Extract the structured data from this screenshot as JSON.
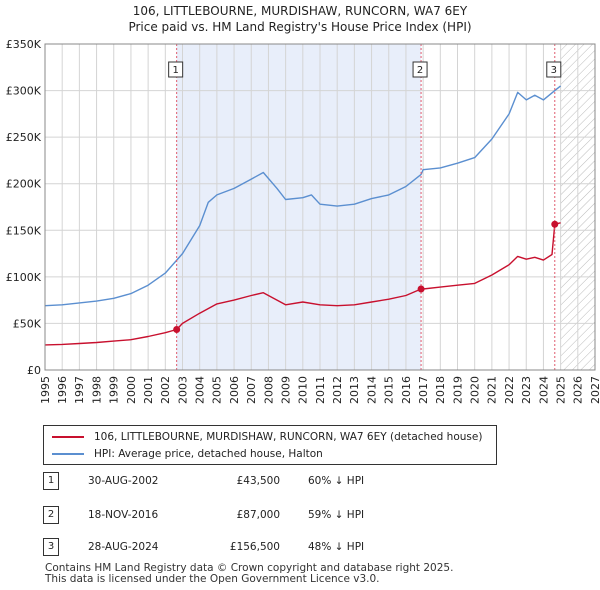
{
  "title_line1": "106, LITTLEBOURNE, MURDISHAW, RUNCORN, WA7 6EY",
  "title_line2": "Price paid vs. HM Land Registry's House Price Index (HPI)",
  "legend": {
    "property": "106, LITTLEBOURNE, MURDISHAW, RUNCORN, WA7 6EY (detached house)",
    "hpi": "HPI: Average price, detached house, Halton"
  },
  "sales": [
    {
      "num": "1",
      "date": "30-AUG-2002",
      "price": "£43,500",
      "hpi_diff": "60% ↓ HPI"
    },
    {
      "num": "2",
      "date": "18-NOV-2016",
      "price": "£87,000",
      "hpi_diff": "59% ↓ HPI"
    },
    {
      "num": "3",
      "date": "28-AUG-2024",
      "price": "£156,500",
      "hpi_diff": "48% ↓ HPI"
    }
  ],
  "footer": {
    "line1": "Contains HM Land Registry data © Crown copyright and database right 2025.",
    "line2": "This data is licensed under the Open Government Licence v3.0."
  },
  "chart_data": {
    "type": "line",
    "title": "Price paid vs. HM Land Registry's House Price Index (HPI)",
    "xlabel": "",
    "ylabel": "",
    "xlim": [
      1995,
      2027
    ],
    "ylim": [
      0,
      350000
    ],
    "x_ticks": [
      "1995",
      "1996",
      "1997",
      "1998",
      "1999",
      "2000",
      "2001",
      "2002",
      "2003",
      "2004",
      "2005",
      "2006",
      "2007",
      "2008",
      "2009",
      "2010",
      "2011",
      "2012",
      "2013",
      "2014",
      "2015",
      "2016",
      "2017",
      "2018",
      "2019",
      "2020",
      "2021",
      "2022",
      "2023",
      "2024",
      "2025",
      "2026",
      "2027"
    ],
    "y_ticks": [
      {
        "value": 0,
        "label": "£0"
      },
      {
        "value": 50000,
        "label": "£50K"
      },
      {
        "value": 100000,
        "label": "£100K"
      },
      {
        "value": 150000,
        "label": "£150K"
      },
      {
        "value": 200000,
        "label": "£200K"
      },
      {
        "value": 250000,
        "label": "£250K"
      },
      {
        "value": 300000,
        "label": "£300K"
      },
      {
        "value": 350000,
        "label": "£350K"
      }
    ],
    "highlight_band": [
      2002.66,
      2016.88
    ],
    "future_hatch_from": 2025.0,
    "series": [
      {
        "name": "HPI: Average price, detached house, Halton",
        "color": "#5b8fd0",
        "points": [
          [
            1995,
            69000
          ],
          [
            1996,
            70000
          ],
          [
            1997,
            72000
          ],
          [
            1998,
            74000
          ],
          [
            1999,
            77000
          ],
          [
            2000,
            82000
          ],
          [
            2001,
            91000
          ],
          [
            2002,
            104000
          ],
          [
            2003,
            125000
          ],
          [
            2004,
            155000
          ],
          [
            2004.5,
            180000
          ],
          [
            2005,
            188000
          ],
          [
            2006,
            195000
          ],
          [
            2007,
            205000
          ],
          [
            2007.7,
            212000
          ],
          [
            2008.5,
            195000
          ],
          [
            2009,
            183000
          ],
          [
            2010,
            185000
          ],
          [
            2010.5,
            188000
          ],
          [
            2011,
            178000
          ],
          [
            2012,
            176000
          ],
          [
            2013,
            178000
          ],
          [
            2014,
            184000
          ],
          [
            2015,
            188000
          ],
          [
            2016,
            197000
          ],
          [
            2016.88,
            210000
          ],
          [
            2017,
            215000
          ],
          [
            2018,
            217000
          ],
          [
            2019,
            222000
          ],
          [
            2020,
            228000
          ],
          [
            2021,
            248000
          ],
          [
            2022,
            275000
          ],
          [
            2022.5,
            298000
          ],
          [
            2023,
            290000
          ],
          [
            2023.5,
            295000
          ],
          [
            2024,
            290000
          ],
          [
            2024.66,
            300000
          ],
          [
            2025,
            305000
          ]
        ]
      },
      {
        "name": "106, LITTLEBOURNE, MURDISHAW, RUNCORN, WA7 6EY (detached house)",
        "color": "#c8102e",
        "points": [
          [
            1995,
            27000
          ],
          [
            1996,
            27500
          ],
          [
            1997,
            28500
          ],
          [
            1998,
            29500
          ],
          [
            1999,
            31000
          ],
          [
            2000,
            32500
          ],
          [
            2001,
            36000
          ],
          [
            2002,
            40000
          ],
          [
            2002.66,
            43500
          ],
          [
            2003,
            50000
          ],
          [
            2004,
            61000
          ],
          [
            2005,
            71000
          ],
          [
            2006,
            75000
          ],
          [
            2007,
            80000
          ],
          [
            2007.7,
            83000
          ],
          [
            2008.5,
            75000
          ],
          [
            2009,
            70000
          ],
          [
            2010,
            73000
          ],
          [
            2011,
            70000
          ],
          [
            2012,
            69000
          ],
          [
            2013,
            70000
          ],
          [
            2014,
            73000
          ],
          [
            2015,
            76000
          ],
          [
            2016,
            80000
          ],
          [
            2016.88,
            87000
          ],
          [
            2017,
            87000
          ],
          [
            2018,
            89000
          ],
          [
            2019,
            91000
          ],
          [
            2020,
            93000
          ],
          [
            2021,
            102000
          ],
          [
            2022,
            113000
          ],
          [
            2022.5,
            122000
          ],
          [
            2023,
            119000
          ],
          [
            2023.5,
            121000
          ],
          [
            2024,
            118000
          ],
          [
            2024.5,
            124000
          ],
          [
            2024.66,
            156500
          ],
          [
            2025,
            158000
          ]
        ]
      }
    ],
    "sale_markers": [
      {
        "label": "1",
        "x": 2002.66,
        "y": 43500
      },
      {
        "label": "2",
        "x": 2016.88,
        "y": 87000
      },
      {
        "label": "3",
        "x": 2024.66,
        "y": 156500
      }
    ],
    "colors": {
      "band": "#e8eefa",
      "marker_line": "#e05b6e",
      "grid": "#d4d4d4"
    }
  }
}
